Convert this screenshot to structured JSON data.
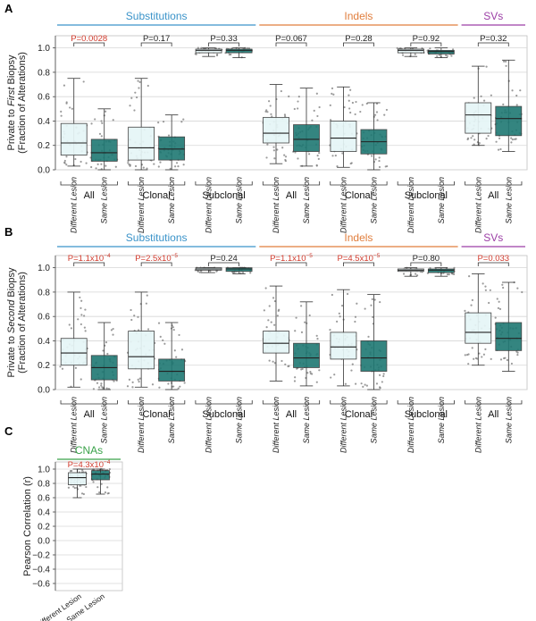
{
  "colors": {
    "substitutions": "#3a93c9",
    "indels": "#e07d3c",
    "svs": "#9c3fa6",
    "cnas": "#3aa24a",
    "p_significant": "#d03a2c",
    "p_nonsignificant": "#222222",
    "different_lesion_fill": "#e6f6f7",
    "same_lesion_fill": "#1f7873",
    "grid": "#d6d6d6",
    "points": "#7a7a7a"
  },
  "chart_data": [
    {
      "panel": "A",
      "type": "box",
      "ylabel": [
        "Private to First Biopsy",
        "(Fraction of Alterations)"
      ],
      "ylabel_italic_word": "First",
      "ylim": [
        0,
        1.1
      ],
      "yticks": [
        "0.0",
        "0.2",
        "0.4",
        "0.6",
        "0.8",
        "1.0"
      ],
      "grid": true,
      "series_labels": [
        "Different Lesion",
        "Same Lesion"
      ],
      "categories": [
        {
          "label": "Substitutions",
          "color_key": "substitutions",
          "span": [
            0,
            2
          ]
        },
        {
          "label": "Indels",
          "color_key": "indels",
          "span": [
            3,
            5
          ]
        },
        {
          "label": "SVs",
          "color_key": "svs",
          "span": [
            6,
            6
          ]
        }
      ],
      "groups": [
        {
          "label": "All",
          "p": "P=0.0028",
          "sig": true,
          "diff": [
            0.03,
            0.12,
            0.22,
            0.38,
            0.75
          ],
          "same": [
            0.0,
            0.07,
            0.14,
            0.25,
            0.5
          ]
        },
        {
          "label": "Clonal",
          "p": "P=0.17",
          "sig": false,
          "diff": [
            0.0,
            0.08,
            0.18,
            0.35,
            0.75
          ],
          "same": [
            0.0,
            0.08,
            0.17,
            0.27,
            0.45
          ]
        },
        {
          "label": "Subclonal",
          "p": "P=0.33",
          "sig": false,
          "diff": [
            0.93,
            0.96,
            0.98,
            0.99,
            1.0
          ],
          "same": [
            0.92,
            0.96,
            0.98,
            0.99,
            1.0
          ]
        },
        {
          "label": "All",
          "p": "P=0.067",
          "sig": false,
          "diff": [
            0.05,
            0.22,
            0.3,
            0.43,
            0.7
          ],
          "same": [
            0.03,
            0.15,
            0.25,
            0.37,
            0.67
          ]
        },
        {
          "label": "Clonal",
          "p": "P=0.28",
          "sig": false,
          "diff": [
            0.02,
            0.15,
            0.26,
            0.4,
            0.68
          ],
          "same": [
            0.0,
            0.13,
            0.23,
            0.33,
            0.55
          ]
        },
        {
          "label": "Subclonal",
          "p": "P=0.92",
          "sig": false,
          "diff": [
            0.93,
            0.96,
            0.98,
            0.99,
            1.0
          ],
          "same": [
            0.92,
            0.95,
            0.97,
            0.98,
            1.0
          ]
        },
        {
          "label": "All",
          "p": "P=0.32",
          "sig": false,
          "diff": [
            0.2,
            0.3,
            0.45,
            0.55,
            0.85
          ],
          "same": [
            0.15,
            0.28,
            0.42,
            0.52,
            0.9
          ]
        }
      ]
    },
    {
      "panel": "B",
      "type": "box",
      "ylabel": [
        "Private to Second Biopsy",
        "(Fraction of Alterations)"
      ],
      "ylabel_italic_word": "Second",
      "ylim": [
        0,
        1.1
      ],
      "yticks": [
        "0.0",
        "0.2",
        "0.4",
        "0.6",
        "0.8",
        "1.0"
      ],
      "grid": true,
      "series_labels": [
        "Different Lesion",
        "Same Lesion"
      ],
      "categories": [
        {
          "label": "Substitutions",
          "color_key": "substitutions",
          "span": [
            0,
            2
          ]
        },
        {
          "label": "Indels",
          "color_key": "indels",
          "span": [
            3,
            5
          ]
        },
        {
          "label": "SVs",
          "color_key": "svs",
          "span": [
            6,
            6
          ]
        }
      ],
      "groups": [
        {
          "label": "All",
          "p": "P=1.1x10",
          "p_exp": "−4",
          "sig": true,
          "diff": [
            0.02,
            0.2,
            0.3,
            0.42,
            0.8
          ],
          "same": [
            0.0,
            0.08,
            0.18,
            0.28,
            0.55
          ]
        },
        {
          "label": "Clonal",
          "p": "P=2.5x10",
          "p_exp": "−5",
          "sig": true,
          "diff": [
            0.02,
            0.17,
            0.27,
            0.48,
            0.8
          ],
          "same": [
            0.0,
            0.07,
            0.15,
            0.25,
            0.55
          ]
        },
        {
          "label": "Subclonal",
          "p": "P=0.24",
          "sig": false,
          "diff": [
            0.96,
            0.98,
            0.99,
            1.0,
            1.0
          ],
          "same": [
            0.95,
            0.97,
            0.99,
            1.0,
            1.0
          ]
        },
        {
          "label": "All",
          "p": "P=1.1x10",
          "p_exp": "−5",
          "sig": true,
          "diff": [
            0.07,
            0.3,
            0.38,
            0.48,
            0.85
          ],
          "same": [
            0.03,
            0.18,
            0.26,
            0.38,
            0.72
          ]
        },
        {
          "label": "Clonal",
          "p": "P=4.5x10",
          "p_exp": "−5",
          "sig": true,
          "diff": [
            0.03,
            0.25,
            0.35,
            0.47,
            0.82
          ],
          "same": [
            0.0,
            0.15,
            0.26,
            0.4,
            0.78
          ]
        },
        {
          "label": "Subclonal",
          "p": "P=0.80",
          "sig": false,
          "diff": [
            0.93,
            0.97,
            0.98,
            0.99,
            1.0
          ],
          "same": [
            0.93,
            0.96,
            0.98,
            0.99,
            1.0
          ]
        },
        {
          "label": "All",
          "p": "P=0.033",
          "sig": true,
          "diff": [
            0.2,
            0.38,
            0.47,
            0.63,
            0.95
          ],
          "same": [
            0.15,
            0.32,
            0.42,
            0.55,
            0.88
          ]
        }
      ]
    },
    {
      "panel": "C",
      "type": "box",
      "ylabel": [
        "Pearson Correlation (r)"
      ],
      "ylabel_italic_word": "r",
      "ylim": [
        -0.7,
        1.1
      ],
      "yticks": [
        "−0.6",
        "−0.4",
        "−0.2",
        "0.0",
        "0.2",
        "0.4",
        "0.6",
        "0.8",
        "1.0"
      ],
      "grid": true,
      "series_labels": [
        "Different Lesion",
        "Same Lesion"
      ],
      "categories": [
        {
          "label": "CNAs",
          "color_key": "cnas",
          "span": [
            0,
            0
          ]
        }
      ],
      "groups": [
        {
          "label": "",
          "p": "P=4.3x10",
          "p_exp": "−4",
          "sig": true,
          "diff": [
            0.6,
            0.78,
            0.88,
            0.95,
            1.0
          ],
          "same": [
            0.65,
            0.85,
            0.93,
            0.98,
            1.0
          ]
        }
      ]
    }
  ]
}
